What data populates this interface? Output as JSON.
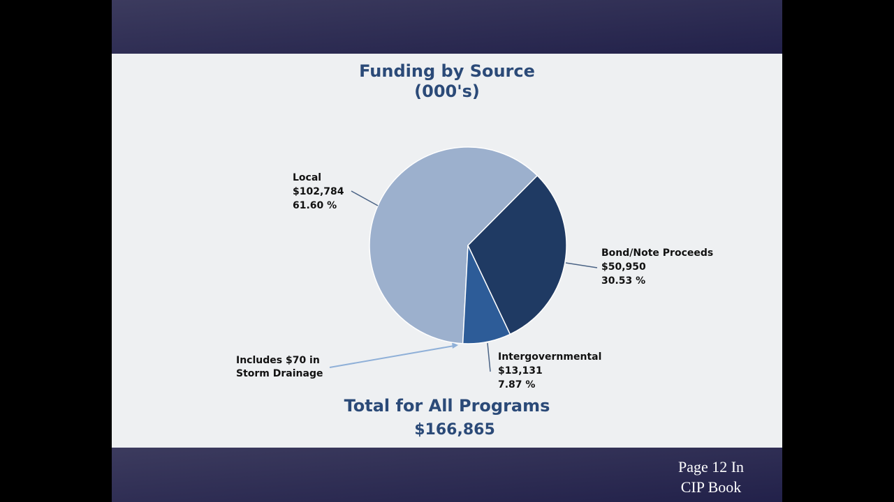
{
  "chart_data": {
    "type": "pie",
    "title": "Funding by Source",
    "subtitle": "(000's)",
    "categories": [
      "Local",
      "Bond/Note Proceeds",
      "Intergovernmental"
    ],
    "values": [
      102784,
      50950,
      13131
    ],
    "value_labels": [
      "$102,784",
      "$50,950",
      "$13,131"
    ],
    "percent_labels": [
      "61.60 %",
      "30.53 %",
      "7.87 %"
    ],
    "colors": [
      "#9cb0cd",
      "#1f3a63",
      "#2d5c98"
    ],
    "annotation": "Includes $70 in Storm Drainage",
    "total_label": "Total for All Programs",
    "total_value_label": "$166,865"
  },
  "footer": {
    "text": "Page 12 In CIP Book"
  }
}
